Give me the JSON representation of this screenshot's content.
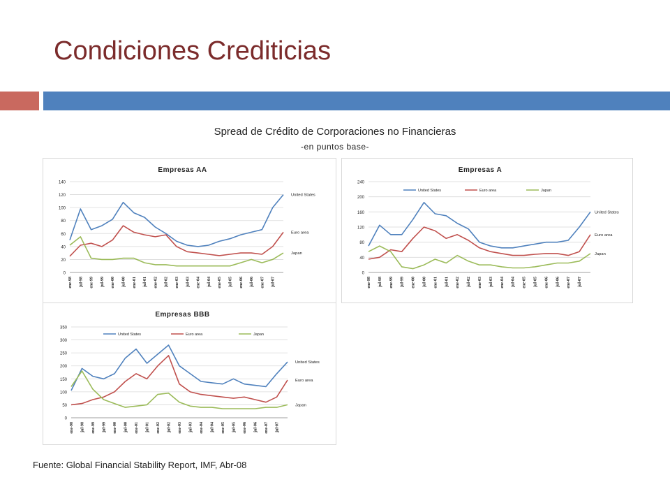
{
  "slide": {
    "title": "Condiciones Crediticias",
    "heading": "Spread de Crédito de Corporaciones no Financieras",
    "subheading": "-en puntos base-",
    "source": "Fuente: Global Financial Stability Report, IMF, Abr-08"
  },
  "colors": {
    "title": "#7b2b2b",
    "accent_red": "#c9695f",
    "accent_blue": "#4f81bd",
    "united_states": "#4f81bd",
    "euro_area": "#c0504d",
    "japan": "#9bbb59"
  },
  "chart_data": [
    {
      "type": "line",
      "title": "Empresas AA",
      "legend": "end-labels",
      "grid": true,
      "ylim": [
        0,
        140
      ],
      "yticks": [
        0,
        20,
        40,
        60,
        80,
        100,
        120,
        140
      ],
      "x": [
        "ene-98",
        "jul-98",
        "ene-99",
        "jul-99",
        "ene-00",
        "jul-00",
        "ene-01",
        "jul-01",
        "ene-02",
        "jul-02",
        "ene-03",
        "jul-03",
        "ene-04",
        "jul-04",
        "ene-05",
        "jul-05",
        "ene-06",
        "jul-06",
        "ene-07",
        "jul-07",
        "ene-08"
      ],
      "xticks": [
        "ene-98",
        "jul-98",
        "ene-99",
        "jul-99",
        "ene-00",
        "jul-00",
        "ene-01",
        "jul-01",
        "ene-02",
        "jul-02",
        "ene-03",
        "jul-03",
        "ene-04",
        "jul-04",
        "ene-05",
        "jul-05",
        "ene-06",
        "jul-06",
        "ene-07",
        "jul-07"
      ],
      "series": [
        {
          "name": "United States",
          "values": [
            50,
            98,
            66,
            72,
            82,
            108,
            92,
            85,
            70,
            60,
            48,
            42,
            40,
            42,
            48,
            52,
            58,
            62,
            66,
            100,
            120
          ]
        },
        {
          "name": "Euro area",
          "values": [
            25,
            42,
            45,
            40,
            50,
            72,
            62,
            58,
            55,
            58,
            40,
            32,
            30,
            28,
            26,
            28,
            30,
            30,
            28,
            40,
            62
          ]
        },
        {
          "name": "Japan",
          "values": [
            42,
            55,
            22,
            20,
            20,
            22,
            22,
            15,
            12,
            12,
            10,
            10,
            10,
            10,
            10,
            10,
            15,
            20,
            15,
            20,
            30
          ]
        }
      ]
    },
    {
      "type": "line",
      "title": "Empresas A",
      "legend": "top",
      "grid": true,
      "ylim": [
        0,
        240
      ],
      "yticks": [
        0,
        40,
        80,
        120,
        160,
        200,
        240
      ],
      "x": [
        "ene-98",
        "jul-98",
        "ene-99",
        "jul-99",
        "ene-00",
        "jul-00",
        "ene-01",
        "jul-01",
        "ene-02",
        "jul-02",
        "ene-03",
        "jul-03",
        "ene-04",
        "jul-04",
        "ene-05",
        "jul-05",
        "ene-06",
        "jul-06",
        "ene-07",
        "jul-07",
        "ene-08"
      ],
      "xticks": [
        "ene-98",
        "jul-98",
        "ene-99",
        "jul-99",
        "ene-00",
        "jul-00",
        "ene-01",
        "jul-01",
        "ene-02",
        "jul-02",
        "ene-03",
        "jul-03",
        "ene-04",
        "jul-04",
        "ene-05",
        "jul-05",
        "ene-06",
        "jul-06",
        "ene-07",
        "jul-07"
      ],
      "series": [
        {
          "name": "United States",
          "values": [
            70,
            125,
            100,
            100,
            140,
            185,
            155,
            150,
            130,
            115,
            80,
            70,
            65,
            65,
            70,
            75,
            80,
            80,
            85,
            120,
            160
          ]
        },
        {
          "name": "Euro area",
          "values": [
            35,
            40,
            60,
            55,
            90,
            120,
            110,
            90,
            100,
            85,
            65,
            55,
            50,
            45,
            45,
            48,
            50,
            50,
            45,
            55,
            100
          ]
        },
        {
          "name": "Japan",
          "values": [
            55,
            70,
            55,
            15,
            10,
            20,
            35,
            25,
            45,
            30,
            20,
            20,
            15,
            12,
            12,
            15,
            20,
            25,
            25,
            30,
            50
          ]
        }
      ]
    },
    {
      "type": "line",
      "title": "Empresas BBB",
      "legend": "top",
      "grid": true,
      "ylim": [
        0,
        350
      ],
      "yticks": [
        0,
        50,
        100,
        150,
        200,
        250,
        300,
        350
      ],
      "x": [
        "ene-98",
        "jul-98",
        "ene-99",
        "jul-99",
        "ene-00",
        "jul-00",
        "ene-01",
        "jul-01",
        "ene-02",
        "jul-02",
        "ene-03",
        "jul-03",
        "ene-04",
        "jul-04",
        "ene-05",
        "jul-05",
        "ene-06",
        "jul-06",
        "ene-07",
        "jul-07",
        "ene-08"
      ],
      "xticks": [
        "ene-98",
        "jul-98",
        "ene-99",
        "jul-99",
        "ene-00",
        "jul-00",
        "ene-01",
        "jul-01",
        "ene-02",
        "jul-02",
        "ene-03",
        "jul-03",
        "ene-04",
        "jul-04",
        "ene-05",
        "jul-05",
        "ene-06",
        "jul-06",
        "ene-07",
        "jul-07"
      ],
      "series": [
        {
          "name": "United States",
          "values": [
            105,
            190,
            160,
            150,
            170,
            230,
            265,
            210,
            245,
            280,
            200,
            170,
            140,
            135,
            130,
            150,
            130,
            125,
            120,
            170,
            215
          ]
        },
        {
          "name": "Euro area",
          "values": [
            50,
            55,
            70,
            80,
            100,
            140,
            170,
            150,
            200,
            240,
            130,
            100,
            90,
            85,
            80,
            75,
            80,
            70,
            60,
            80,
            145
          ]
        },
        {
          "name": "Japan",
          "values": [
            120,
            180,
            110,
            70,
            55,
            40,
            45,
            50,
            90,
            95,
            60,
            45,
            40,
            40,
            35,
            35,
            35,
            35,
            40,
            40,
            50
          ]
        }
      ]
    }
  ]
}
